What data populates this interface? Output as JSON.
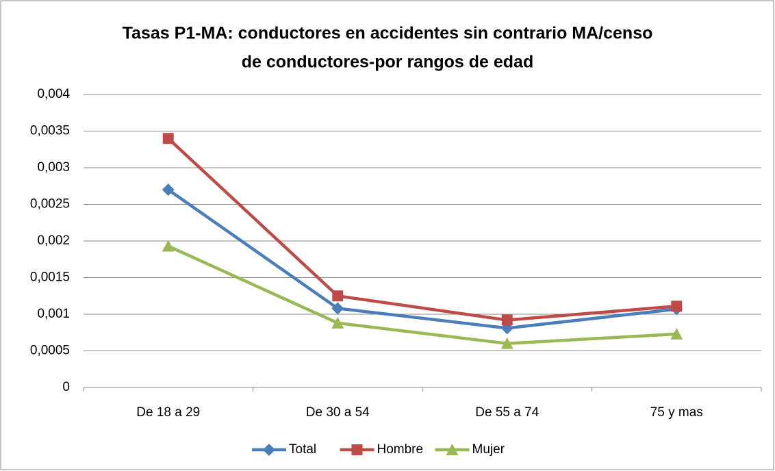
{
  "chart_data": {
    "type": "line",
    "title": [
      "Tasas  P1-MA: conductores en accidentes sin contrario MA/censo",
      "de conductores-por rangos de edad"
    ],
    "categories": [
      "De 18 a 29",
      "De 30 a 54",
      "De 55 a 74",
      "75 y mas"
    ],
    "series": [
      {
        "name": "Total",
        "color": "#4a7ebb",
        "marker": "diamond",
        "values": [
          0.0027,
          0.00108,
          0.00081,
          0.00107
        ]
      },
      {
        "name": "Hombre",
        "color": "#be4b48",
        "marker": "square",
        "values": [
          0.0034,
          0.00125,
          0.00092,
          0.00111
        ]
      },
      {
        "name": "Mujer",
        "color": "#98b954",
        "marker": "triangle",
        "values": [
          0.00193,
          0.00088,
          0.0006,
          0.00073
        ]
      }
    ],
    "ylim": [
      0,
      0.004
    ],
    "yticks": [
      0,
      {
        "value": 0.0005,
        "label": "0,0005"
      },
      {
        "value": 0.001,
        "label": "0,001"
      },
      {
        "value": 0.0015,
        "label": "0,0015"
      },
      {
        "value": 0.002,
        "label": "0,002"
      },
      {
        "value": 0.0025,
        "label": "0,0025"
      },
      {
        "value": 0.003,
        "label": "0,003"
      },
      {
        "value": 0.0035,
        "label": "0,0035"
      },
      {
        "value": 0.004,
        "label": "0,004"
      }
    ],
    "grid": true,
    "legend": "bottom"
  }
}
